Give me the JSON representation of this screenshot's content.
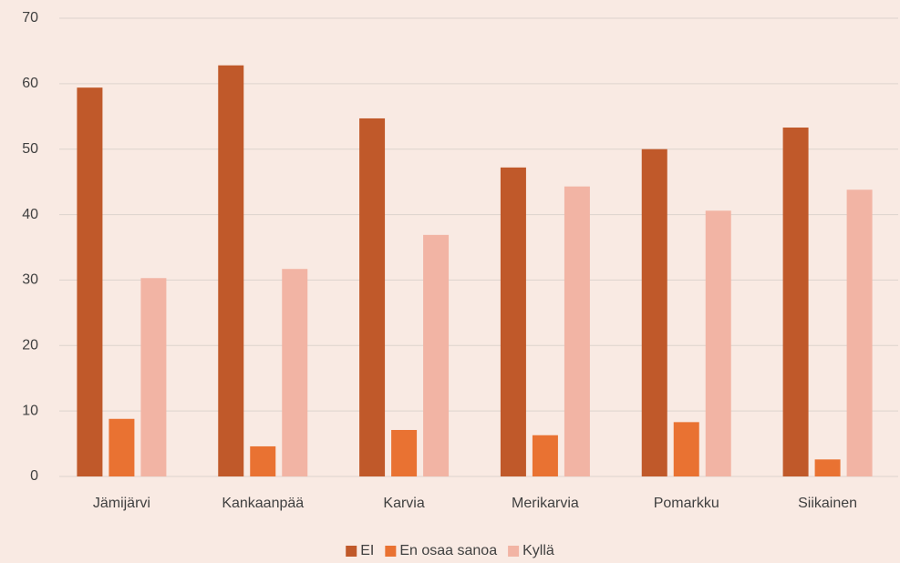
{
  "chart_data": {
    "type": "bar",
    "categories": [
      "Jämijärvi",
      "Kankaanpää",
      "Karvia",
      "Merikarvia",
      "Pomarkku",
      "Siikainen"
    ],
    "series": [
      {
        "name": "EI",
        "color": "#c0592a",
        "values": [
          59.4,
          62.8,
          54.7,
          47.2,
          50.0,
          53.3
        ]
      },
      {
        "name": "En osaa sanoa",
        "color": "#e97232",
        "values": [
          8.8,
          4.6,
          7.1,
          6.3,
          8.3,
          2.6
        ]
      },
      {
        "name": "Kyllä",
        "color": "#f2b4a4",
        "values": [
          30.3,
          31.7,
          36.9,
          44.3,
          40.6,
          43.8
        ]
      }
    ],
    "ylim": [
      0,
      70
    ],
    "yticks": [
      0,
      10,
      20,
      30,
      40,
      50,
      60,
      70
    ],
    "grid": true,
    "legend": "bottom"
  }
}
